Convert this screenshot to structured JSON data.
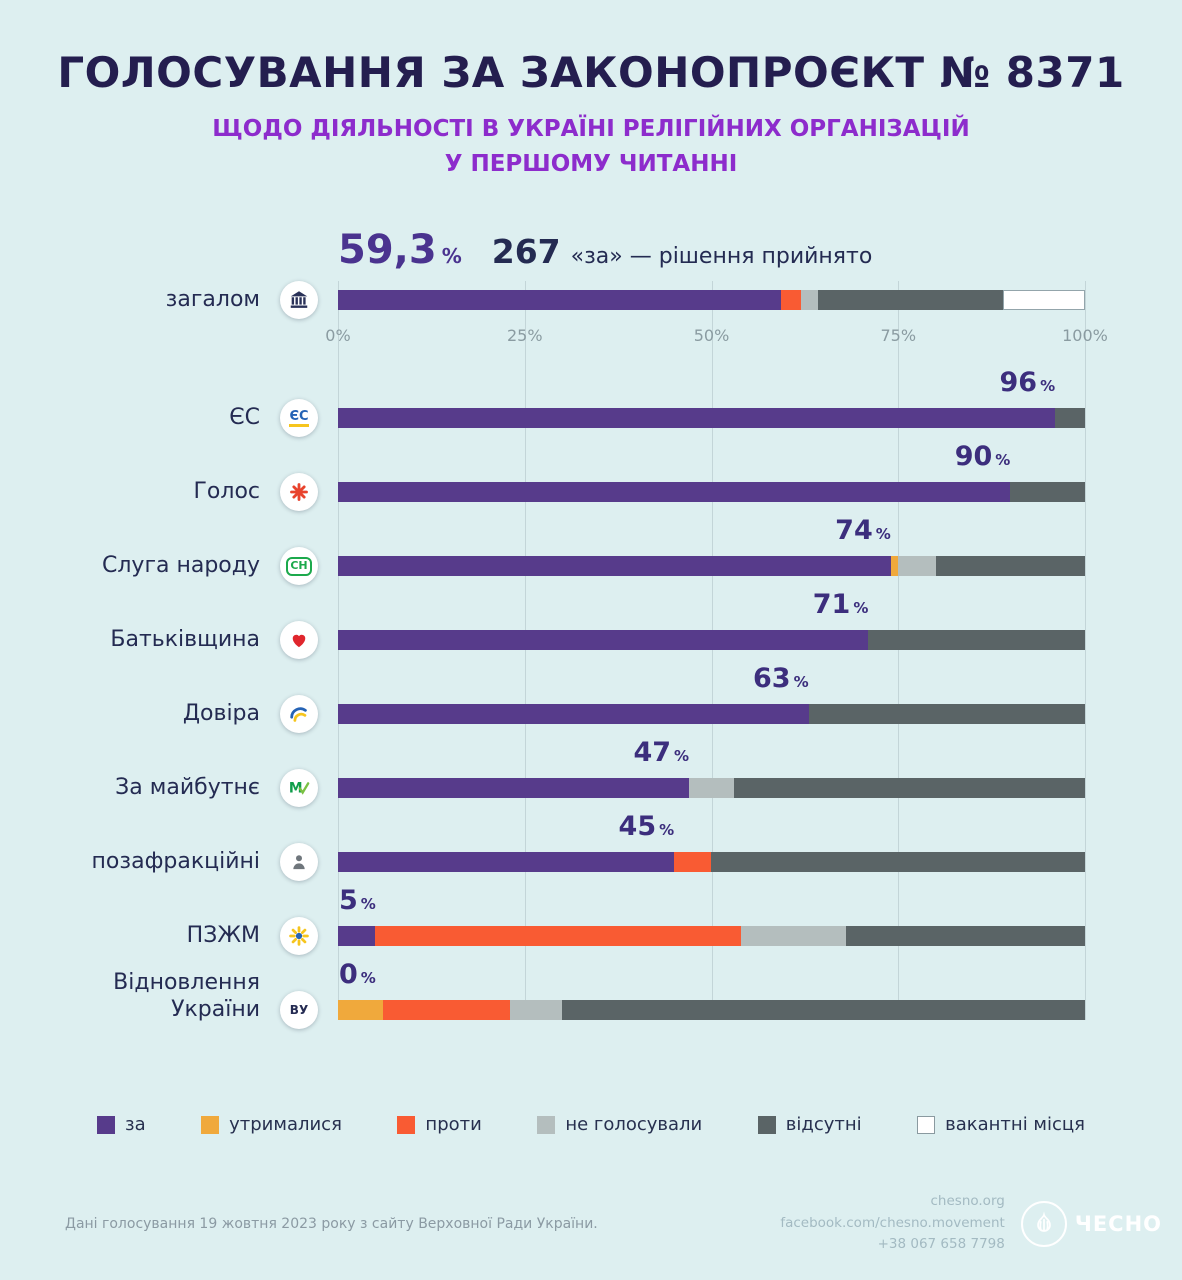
{
  "title": "ГОЛОСУВАННЯ ЗА ЗАКОНОПРОЄКТ № 8371",
  "subtitle_line1": "ЩОДО ДІЯЛЬНОСТІ В УКРАЇНІ РЕЛІГІЙНИХ ОРГАНІЗАЦІЙ",
  "subtitle_line2": "У ПЕРШОМУ ЧИТАННІ",
  "summary": {
    "percent": "59,3",
    "percent_sign": "%",
    "votes": "267",
    "votes_caption": "«за» — рішення прийнято"
  },
  "colors": {
    "za": "#573b8b",
    "utrymalysia": "#f0a93c",
    "proty": "#f95b33",
    "ne_holosuvaly": "#b4bebe",
    "vidsutni": "#5a6466",
    "vakantni": "#ffffff",
    "background": "#ddeff0",
    "title": "#241e4f",
    "subtitle": "#8d2ccc",
    "percent_label": "#3c2e7d"
  },
  "chart_data": {
    "type": "bar",
    "stacked": true,
    "orientation": "horizontal",
    "unit": "%",
    "xlim": [
      0,
      100
    ],
    "axis_ticks": [
      "0%",
      "25%",
      "50%",
      "75%",
      "100%"
    ],
    "rows": [
      {
        "label": "загалом",
        "icon": "parliament",
        "percent": null,
        "show_axis": true,
        "segments": [
          {
            "key": "za",
            "value": 59.3
          },
          {
            "key": "proty",
            "value": 2.7
          },
          {
            "key": "ne_holosuvaly",
            "value": 2.2
          },
          {
            "key": "vidsutni",
            "value": 24.8
          },
          {
            "key": "vakantni",
            "value": 11
          }
        ]
      },
      {
        "label": "ЄС",
        "icon": "es",
        "percent": "96",
        "segments": [
          {
            "key": "za",
            "value": 96
          },
          {
            "key": "vidsutni",
            "value": 4
          }
        ]
      },
      {
        "label": "Голос",
        "icon": "holos",
        "percent": "90",
        "segments": [
          {
            "key": "za",
            "value": 90
          },
          {
            "key": "vidsutni",
            "value": 10
          }
        ]
      },
      {
        "label": "Слуга народу",
        "icon": "sluha-narodu",
        "percent": "74",
        "segments": [
          {
            "key": "za",
            "value": 74
          },
          {
            "key": "utrymalysia",
            "value": 1
          },
          {
            "key": "ne_holosuvaly",
            "value": 5
          },
          {
            "key": "vidsutni",
            "value": 20
          }
        ]
      },
      {
        "label": "Батьківщина",
        "icon": "batkivshchyna",
        "percent": "71",
        "segments": [
          {
            "key": "za",
            "value": 71
          },
          {
            "key": "vidsutni",
            "value": 29
          }
        ]
      },
      {
        "label": "Довіра",
        "icon": "dovira",
        "percent": "63",
        "segments": [
          {
            "key": "za",
            "value": 63
          },
          {
            "key": "vidsutni",
            "value": 37
          }
        ]
      },
      {
        "label": "За майбутнє",
        "icon": "za-maybutnie",
        "percent": "47",
        "segments": [
          {
            "key": "za",
            "value": 47
          },
          {
            "key": "ne_holosuvaly",
            "value": 6
          },
          {
            "key": "vidsutni",
            "value": 47
          }
        ]
      },
      {
        "label": "позафракційні",
        "icon": "non-affiliated",
        "percent": "45",
        "segments": [
          {
            "key": "za",
            "value": 45
          },
          {
            "key": "proty",
            "value": 5
          },
          {
            "key": "vidsutni",
            "value": 50
          }
        ]
      },
      {
        "label": "ПЗЖМ",
        "icon": "pzzhm",
        "percent": "5",
        "segments": [
          {
            "key": "za",
            "value": 5
          },
          {
            "key": "proty",
            "value": 49
          },
          {
            "key": "ne_holosuvaly",
            "value": 14
          },
          {
            "key": "vidsutni",
            "value": 32
          }
        ]
      },
      {
        "label": "Відновлення України",
        "icon": "vidnovlennia",
        "percent": "0",
        "segments": [
          {
            "key": "utrymalysia",
            "value": 6
          },
          {
            "key": "proty",
            "value": 17
          },
          {
            "key": "ne_holosuvaly",
            "value": 7
          },
          {
            "key": "vidsutni",
            "value": 70
          }
        ]
      }
    ]
  },
  "legend": [
    {
      "key": "za",
      "label": "за"
    },
    {
      "key": "utrymalysia",
      "label": "утрималися"
    },
    {
      "key": "proty",
      "label": "проти"
    },
    {
      "key": "ne_holosuvaly",
      "label": "не голосували"
    },
    {
      "key": "vidsutni",
      "label": "відсутні"
    },
    {
      "key": "vakantni",
      "label": "вакантні місця"
    }
  ],
  "footer": {
    "source": "Дані голосування 19 жовтня 2023 року з сайту Верховної Ради України.",
    "website": "chesno.org",
    "facebook": "facebook.com/chesno.movement",
    "phone": "+38 067 658 7798",
    "logo_text": "ЧЕСНО"
  }
}
